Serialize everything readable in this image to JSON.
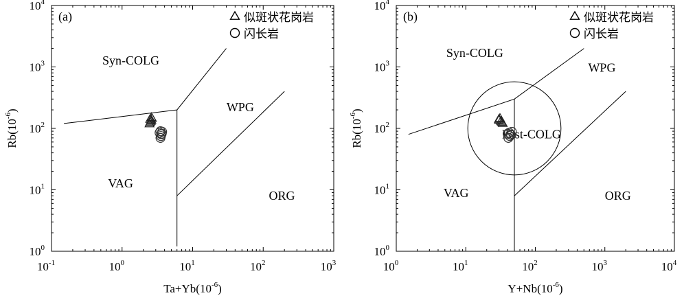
{
  "chart_data": [
    {
      "type": "scatter",
      "panel_label": "(a)",
      "xlabel_base": "Ta+Yb(10",
      "xlabel_exp": "-6",
      "xlabel_end": ")",
      "ylabel_base": "Rb(10",
      "ylabel_exp": "-6",
      "ylabel_end": ")",
      "x_scale": "log",
      "y_scale": "log",
      "xlim": [
        0.1,
        1000
      ],
      "ylim": [
        1,
        10000
      ],
      "x_ticks": [
        {
          "base": "10",
          "exp": "-1"
        },
        {
          "base": "10",
          "exp": "0"
        },
        {
          "base": "10",
          "exp": "1"
        },
        {
          "base": "10",
          "exp": "2"
        },
        {
          "base": "10",
          "exp": "3"
        }
      ],
      "y_ticks": [
        {
          "base": "10",
          "exp": "0"
        },
        {
          "base": "10",
          "exp": "1"
        },
        {
          "base": "10",
          "exp": "2"
        },
        {
          "base": "10",
          "exp": "3"
        },
        {
          "base": "10",
          "exp": "4"
        }
      ],
      "region_labels": [
        "Syn-COLG",
        "WPG",
        "VAG",
        "ORG"
      ],
      "boundaries": [
        [
          [
            0.15,
            120
          ],
          [
            6,
            200
          ],
          [
            30,
            2000
          ]
        ],
        [
          [
            6,
            200
          ],
          [
            6,
            1.2
          ]
        ],
        [
          [
            6,
            8
          ],
          [
            200,
            400
          ]
        ]
      ],
      "legend": [
        {
          "marker": "triangle",
          "label": "似斑状花岗岩"
        },
        {
          "marker": "circle",
          "label": "闪长岩"
        }
      ],
      "series": [
        {
          "marker": "triangle",
          "points": [
            [
              2.5,
              140
            ],
            [
              2.6,
              150
            ],
            [
              2.55,
              130
            ],
            [
              2.65,
              145
            ],
            [
              2.5,
              125
            ],
            [
              2.6,
              135
            ],
            [
              2.45,
              118
            ]
          ]
        },
        {
          "marker": "circle",
          "points": [
            [
              3.5,
              90
            ],
            [
              3.6,
              80
            ],
            [
              3.4,
              85
            ],
            [
              3.7,
              88
            ],
            [
              3.55,
              75
            ],
            [
              3.5,
              70
            ],
            [
              3.65,
              82
            ]
          ]
        }
      ]
    },
    {
      "type": "scatter",
      "panel_label": "(b)",
      "xlabel_base": "Y+Nb(10",
      "xlabel_exp": "-6",
      "xlabel_end": ")",
      "ylabel_base": "Rb(10",
      "ylabel_exp": "-6",
      "ylabel_end": ")",
      "x_scale": "log",
      "y_scale": "log",
      "xlim": [
        1,
        10000
      ],
      "ylim": [
        1,
        10000
      ],
      "x_ticks": [
        {
          "base": "10",
          "exp": "0"
        },
        {
          "base": "10",
          "exp": "1"
        },
        {
          "base": "10",
          "exp": "2"
        },
        {
          "base": "10",
          "exp": "3"
        },
        {
          "base": "10",
          "exp": "4"
        }
      ],
      "y_ticks": [
        {
          "base": "10",
          "exp": "0"
        },
        {
          "base": "10",
          "exp": "1"
        },
        {
          "base": "10",
          "exp": "2"
        },
        {
          "base": "10",
          "exp": "3"
        },
        {
          "base": "10",
          "exp": "4"
        }
      ],
      "region_labels": [
        "Syn-COLG",
        "WPG",
        "VAG",
        "ORG",
        "Post-COLG"
      ],
      "boundaries": [
        [
          [
            1.5,
            80
          ],
          [
            50,
            300
          ],
          [
            500,
            2000
          ]
        ],
        [
          [
            50,
            300
          ],
          [
            50,
            1
          ]
        ],
        [
          [
            50,
            8
          ],
          [
            2000,
            400
          ]
        ]
      ],
      "post_colg_circle": {
        "center_x": 50,
        "center_y": 100,
        "log_radius": 0.67
      },
      "legend": [
        {
          "marker": "triangle",
          "label": "似斑状花岗岩"
        },
        {
          "marker": "circle",
          "label": "闪长岩"
        }
      ],
      "series": [
        {
          "marker": "triangle",
          "points": [
            [
              30,
              140
            ],
            [
              32,
              130
            ],
            [
              31,
              145
            ],
            [
              33,
              125
            ],
            [
              30,
              135
            ],
            [
              34,
              120
            ]
          ]
        },
        {
          "marker": "circle",
          "points": [
            [
              42,
              85
            ],
            [
              44,
              80
            ],
            [
              40,
              82
            ],
            [
              46,
              88
            ],
            [
              43,
              75
            ],
            [
              41,
              70
            ],
            [
              45,
              78
            ]
          ]
        }
      ]
    }
  ]
}
